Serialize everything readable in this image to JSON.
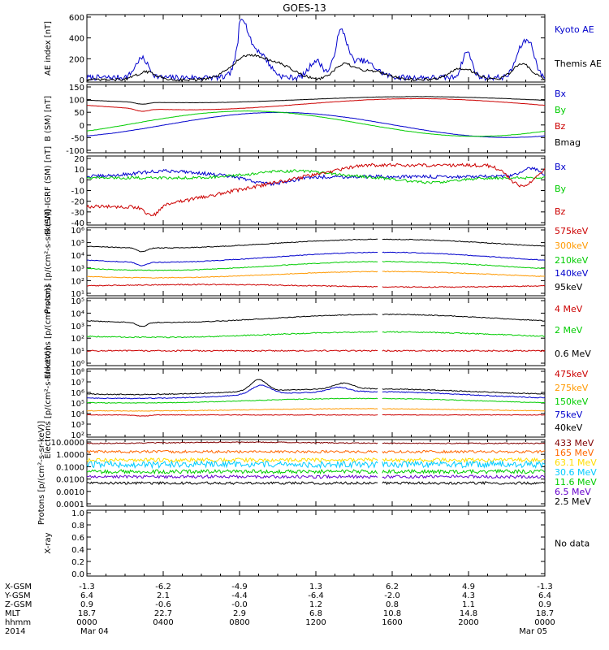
{
  "title": "GOES-13",
  "x_axis": {
    "rows": [
      {
        "label": "X-GSM",
        "values": [
          "-1.3",
          "-6.2",
          "-4.9",
          "1.3",
          "6.2",
          "4.9",
          "-1.3"
        ]
      },
      {
        "label": "Y-GSM",
        "values": [
          "6.4",
          "2.1",
          "-4.4",
          "-6.4",
          "-2.0",
          "4.3",
          "6.4"
        ]
      },
      {
        "label": "Z-GSM",
        "values": [
          "0.9",
          "-0.6",
          "-0.0",
          "1.2",
          "0.8",
          "1.1",
          "0.9"
        ]
      },
      {
        "label": "MLT",
        "values": [
          "18.7",
          "22.7",
          "2.9",
          "6.8",
          "10.8",
          "14.8",
          "18.7"
        ]
      },
      {
        "label": "hhmm",
        "values": [
          "0000",
          "0400",
          "0800",
          "1200",
          "1600",
          "2000",
          "0000"
        ]
      }
    ],
    "date_row": {
      "label": "2014",
      "start": "Mar 04",
      "end": "Mar 05"
    }
  },
  "chart_data": [
    {
      "type": "line",
      "ylabel": "AE index [nT]",
      "yticks": [
        "0",
        "200",
        "400",
        "600"
      ],
      "ylim": [
        0,
        600
      ],
      "series": [
        {
          "name": "Kyoto AE",
          "color": "#0000cc"
        },
        {
          "name": "Themis AE",
          "color": "#000000"
        }
      ],
      "legend_placement": "right"
    },
    {
      "type": "line",
      "ylabel": "B (SM) [nT]",
      "yticks": [
        "-100",
        "-50",
        "0",
        "50",
        "100",
        "150"
      ],
      "ylim": [
        -110,
        160
      ],
      "series": [
        {
          "name": "Bx",
          "color": "#0000cc"
        },
        {
          "name": "By",
          "color": "#00cc00"
        },
        {
          "name": "Bz",
          "color": "#cc0000"
        },
        {
          "name": "Bmag",
          "color": "#000000"
        }
      ],
      "legend_placement": "right"
    },
    {
      "type": "line",
      "ylabel": "B (SM)-IGRF (SM) [nT]",
      "yticks": [
        "-40",
        "-30",
        "-20",
        "-10",
        "0",
        "10",
        "20"
      ],
      "ylim": [
        -40,
        20
      ],
      "series": [
        {
          "name": "Bx",
          "color": "#0000cc"
        },
        {
          "name": "By",
          "color": "#00cc00"
        },
        {
          "name": "Bz",
          "color": "#cc0000"
        }
      ],
      "legend_placement": "right"
    },
    {
      "type": "line",
      "ylabel": "Protons [p/(cm²-s-sr-keV)]",
      "yscale": "log",
      "yticks": [
        "10¹",
        "10²",
        "10³",
        "10⁴",
        "10⁵",
        "10⁶"
      ],
      "series": [
        {
          "name": "575keV",
          "color": "#cc0000"
        },
        {
          "name": "300keV",
          "color": "#ff9900"
        },
        {
          "name": "210keV",
          "color": "#00cc00"
        },
        {
          "name": "140keV",
          "color": "#0000cc"
        },
        {
          "name": "95keV",
          "color": "#000000"
        }
      ],
      "legend_placement": "right"
    },
    {
      "type": "line",
      "ylabel": "Electrons [p/(cm²-s-sr)]",
      "yscale": "log",
      "yticks": [
        "10⁰",
        "10¹",
        "10²",
        "10³",
        "10⁴",
        "10⁵"
      ],
      "series": [
        {
          "name": "4 MeV",
          "color": "#cc0000"
        },
        {
          "name": "2 MeV",
          "color": "#00cc00"
        },
        {
          "name": "0.6 MeV",
          "color": "#000000"
        }
      ],
      "legend_placement": "right"
    },
    {
      "type": "line",
      "ylabel": "Electrons [p/(cm²-s-sr-keV)]",
      "yscale": "log",
      "yticks": [
        "10²",
        "10³",
        "10⁴",
        "10⁵",
        "10⁶",
        "10⁷",
        "10⁸"
      ],
      "series": [
        {
          "name": "475keV",
          "color": "#cc0000"
        },
        {
          "name": "275keV",
          "color": "#ff9900"
        },
        {
          "name": "150keV",
          "color": "#00cc00"
        },
        {
          "name": "75keV",
          "color": "#0000cc"
        },
        {
          "name": "40keV",
          "color": "#000000"
        }
      ],
      "legend_placement": "right"
    },
    {
      "type": "line",
      "ylabel": "Protons [p/(cm²-s-sr-keV)]",
      "yscale": "log",
      "yticks": [
        "0.0001",
        "0.0010",
        "0.0100",
        "0.1000",
        "1.0000",
        "10.0000"
      ],
      "series": [
        {
          "name": "433 MeV",
          "color": "#800000"
        },
        {
          "name": "165 MeV",
          "color": "#ff6600"
        },
        {
          "name": "63.1 MeV",
          "color": "#ffdd00"
        },
        {
          "name": "30.6 MeV",
          "color": "#00ccff"
        },
        {
          "name": "11.6 MeV",
          "color": "#00cc00"
        },
        {
          "name": "6.5 MeV",
          "color": "#6600cc"
        },
        {
          "name": "2.5 MeV",
          "color": "#000000"
        }
      ],
      "legend_placement": "right"
    },
    {
      "type": "line",
      "ylabel": "X-ray",
      "yticks": [
        "0.0",
        "0.2",
        "0.4",
        "0.6",
        "0.8",
        "1.0"
      ],
      "ylim": [
        0,
        1
      ],
      "series": [],
      "note": "No data"
    }
  ]
}
